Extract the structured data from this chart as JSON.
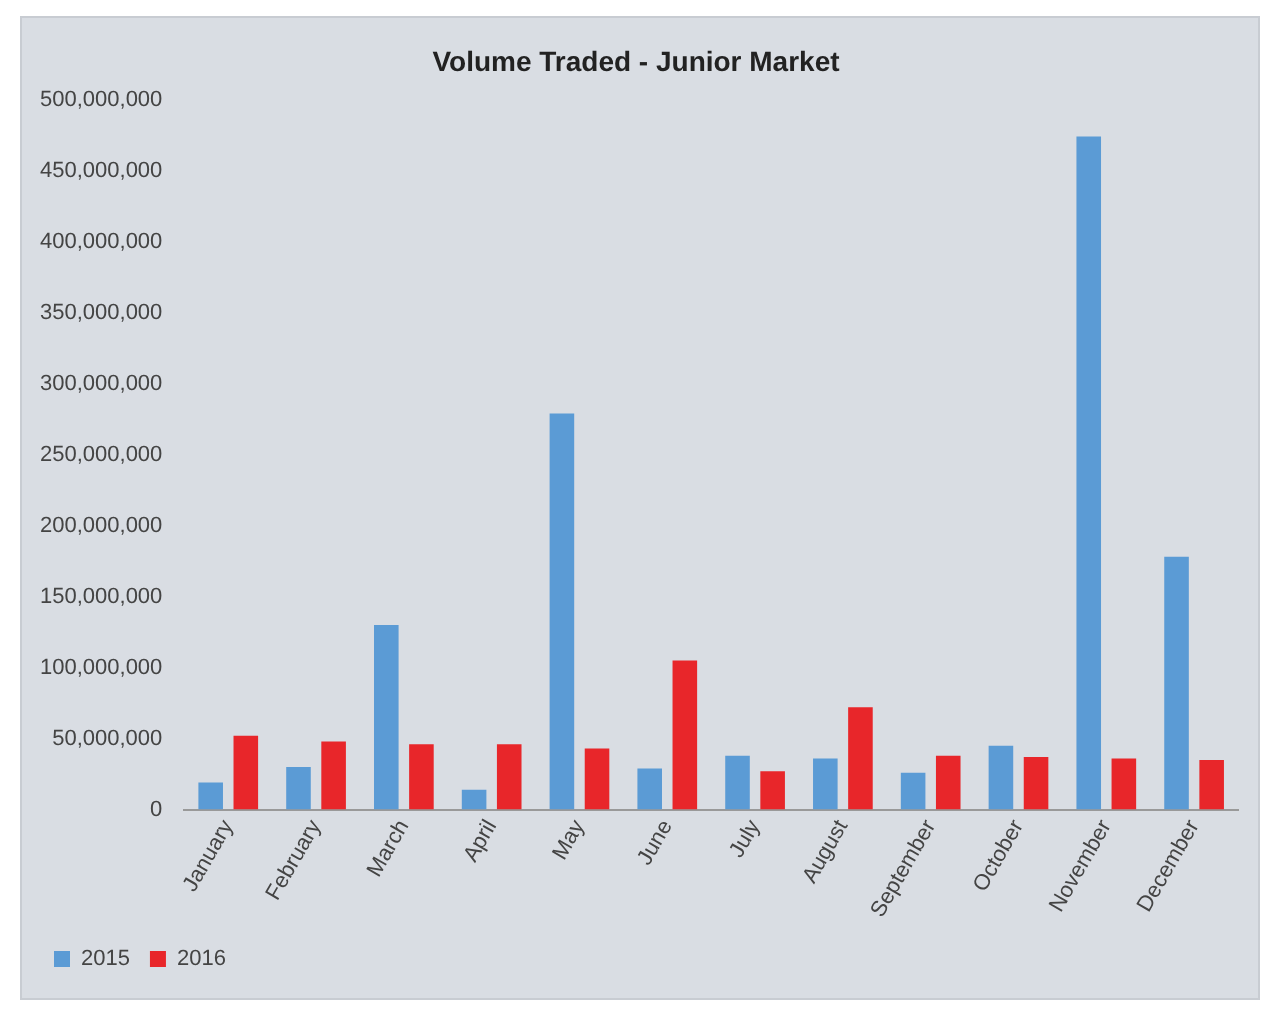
{
  "chart_data": {
    "type": "bar",
    "title": "Volume Traded - Junior Market",
    "categories": [
      "January",
      "February",
      "March",
      "April",
      "May",
      "June",
      "July",
      "August",
      "September",
      "October",
      "November",
      "December"
    ],
    "series": [
      {
        "name": "2015",
        "color": "#5b9bd5",
        "values": [
          19000000,
          30000000,
          130000000,
          14000000,
          279000000,
          29000000,
          38000000,
          36000000,
          26000000,
          45000000,
          474000000,
          178000000
        ]
      },
      {
        "name": "2016",
        "color": "#e8262a",
        "values": [
          52000000,
          48000000,
          46000000,
          46000000,
          43000000,
          105000000,
          27000000,
          72000000,
          38000000,
          37000000,
          36000000,
          35000000
        ]
      }
    ],
    "ylim": [
      0,
      500000000
    ],
    "yticks": [
      0,
      {
        "value": 50000000,
        "label": "50,000,000"
      },
      {
        "value": 100000000,
        "label": "100,000,000"
      },
      {
        "value": 150000000,
        "label": "150,000,000"
      },
      {
        "value": 200000000,
        "label": "200,000,000"
      },
      {
        "value": 250000000,
        "label": "250,000,000"
      },
      {
        "value": 300000000,
        "label": "300,000,000"
      },
      {
        "value": 350000000,
        "label": "350,000,000"
      },
      {
        "value": 400000000,
        "label": "400,000,000"
      },
      {
        "value": 450000000,
        "label": "450,000,000"
      },
      {
        "value": 500000000,
        "label": "500,000,000"
      }
    ],
    "grid": false,
    "legend": "bottom left"
  }
}
